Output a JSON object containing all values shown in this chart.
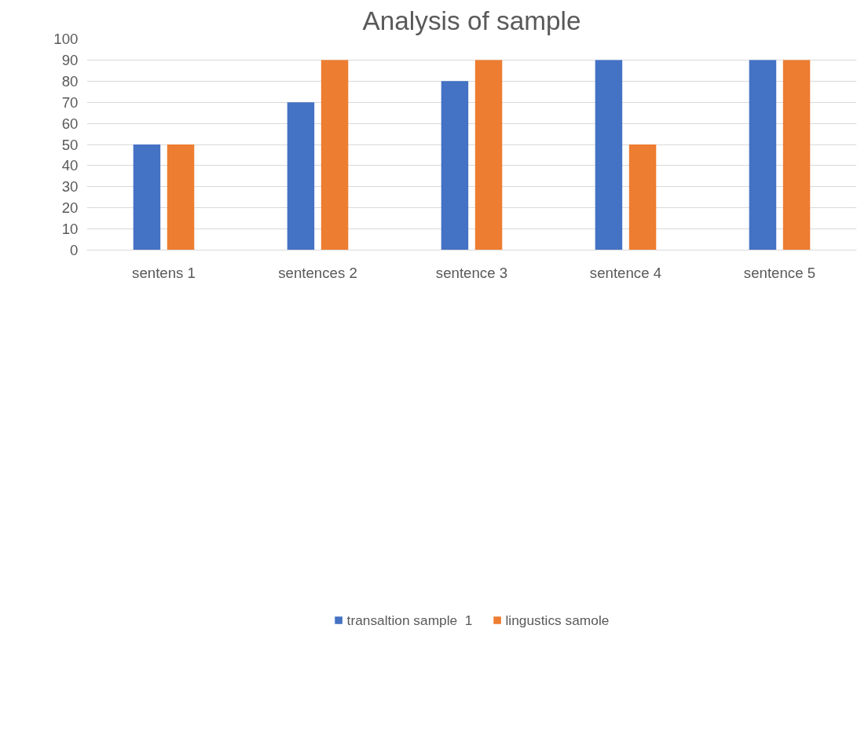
{
  "chart_data": {
    "type": "bar",
    "title": "Analysis of sample",
    "categories": [
      "sentens 1",
      "sentences 2",
      "sentence 3",
      "sentence 4",
      "sentence 5"
    ],
    "series": [
      {
        "name": "transaltion sample  1",
        "color": "#4472c4",
        "values": [
          50,
          70,
          80,
          90,
          90
        ]
      },
      {
        "name": "lingustics samole",
        "color": "#ed7d31",
        "values": [
          50,
          90,
          90,
          50,
          90
        ]
      }
    ],
    "ylim": [
      0,
      100
    ],
    "yticks": [
      0,
      10,
      20,
      30,
      40,
      50,
      60,
      70,
      80,
      90,
      100
    ],
    "grid": "y",
    "legend": "bottom"
  }
}
